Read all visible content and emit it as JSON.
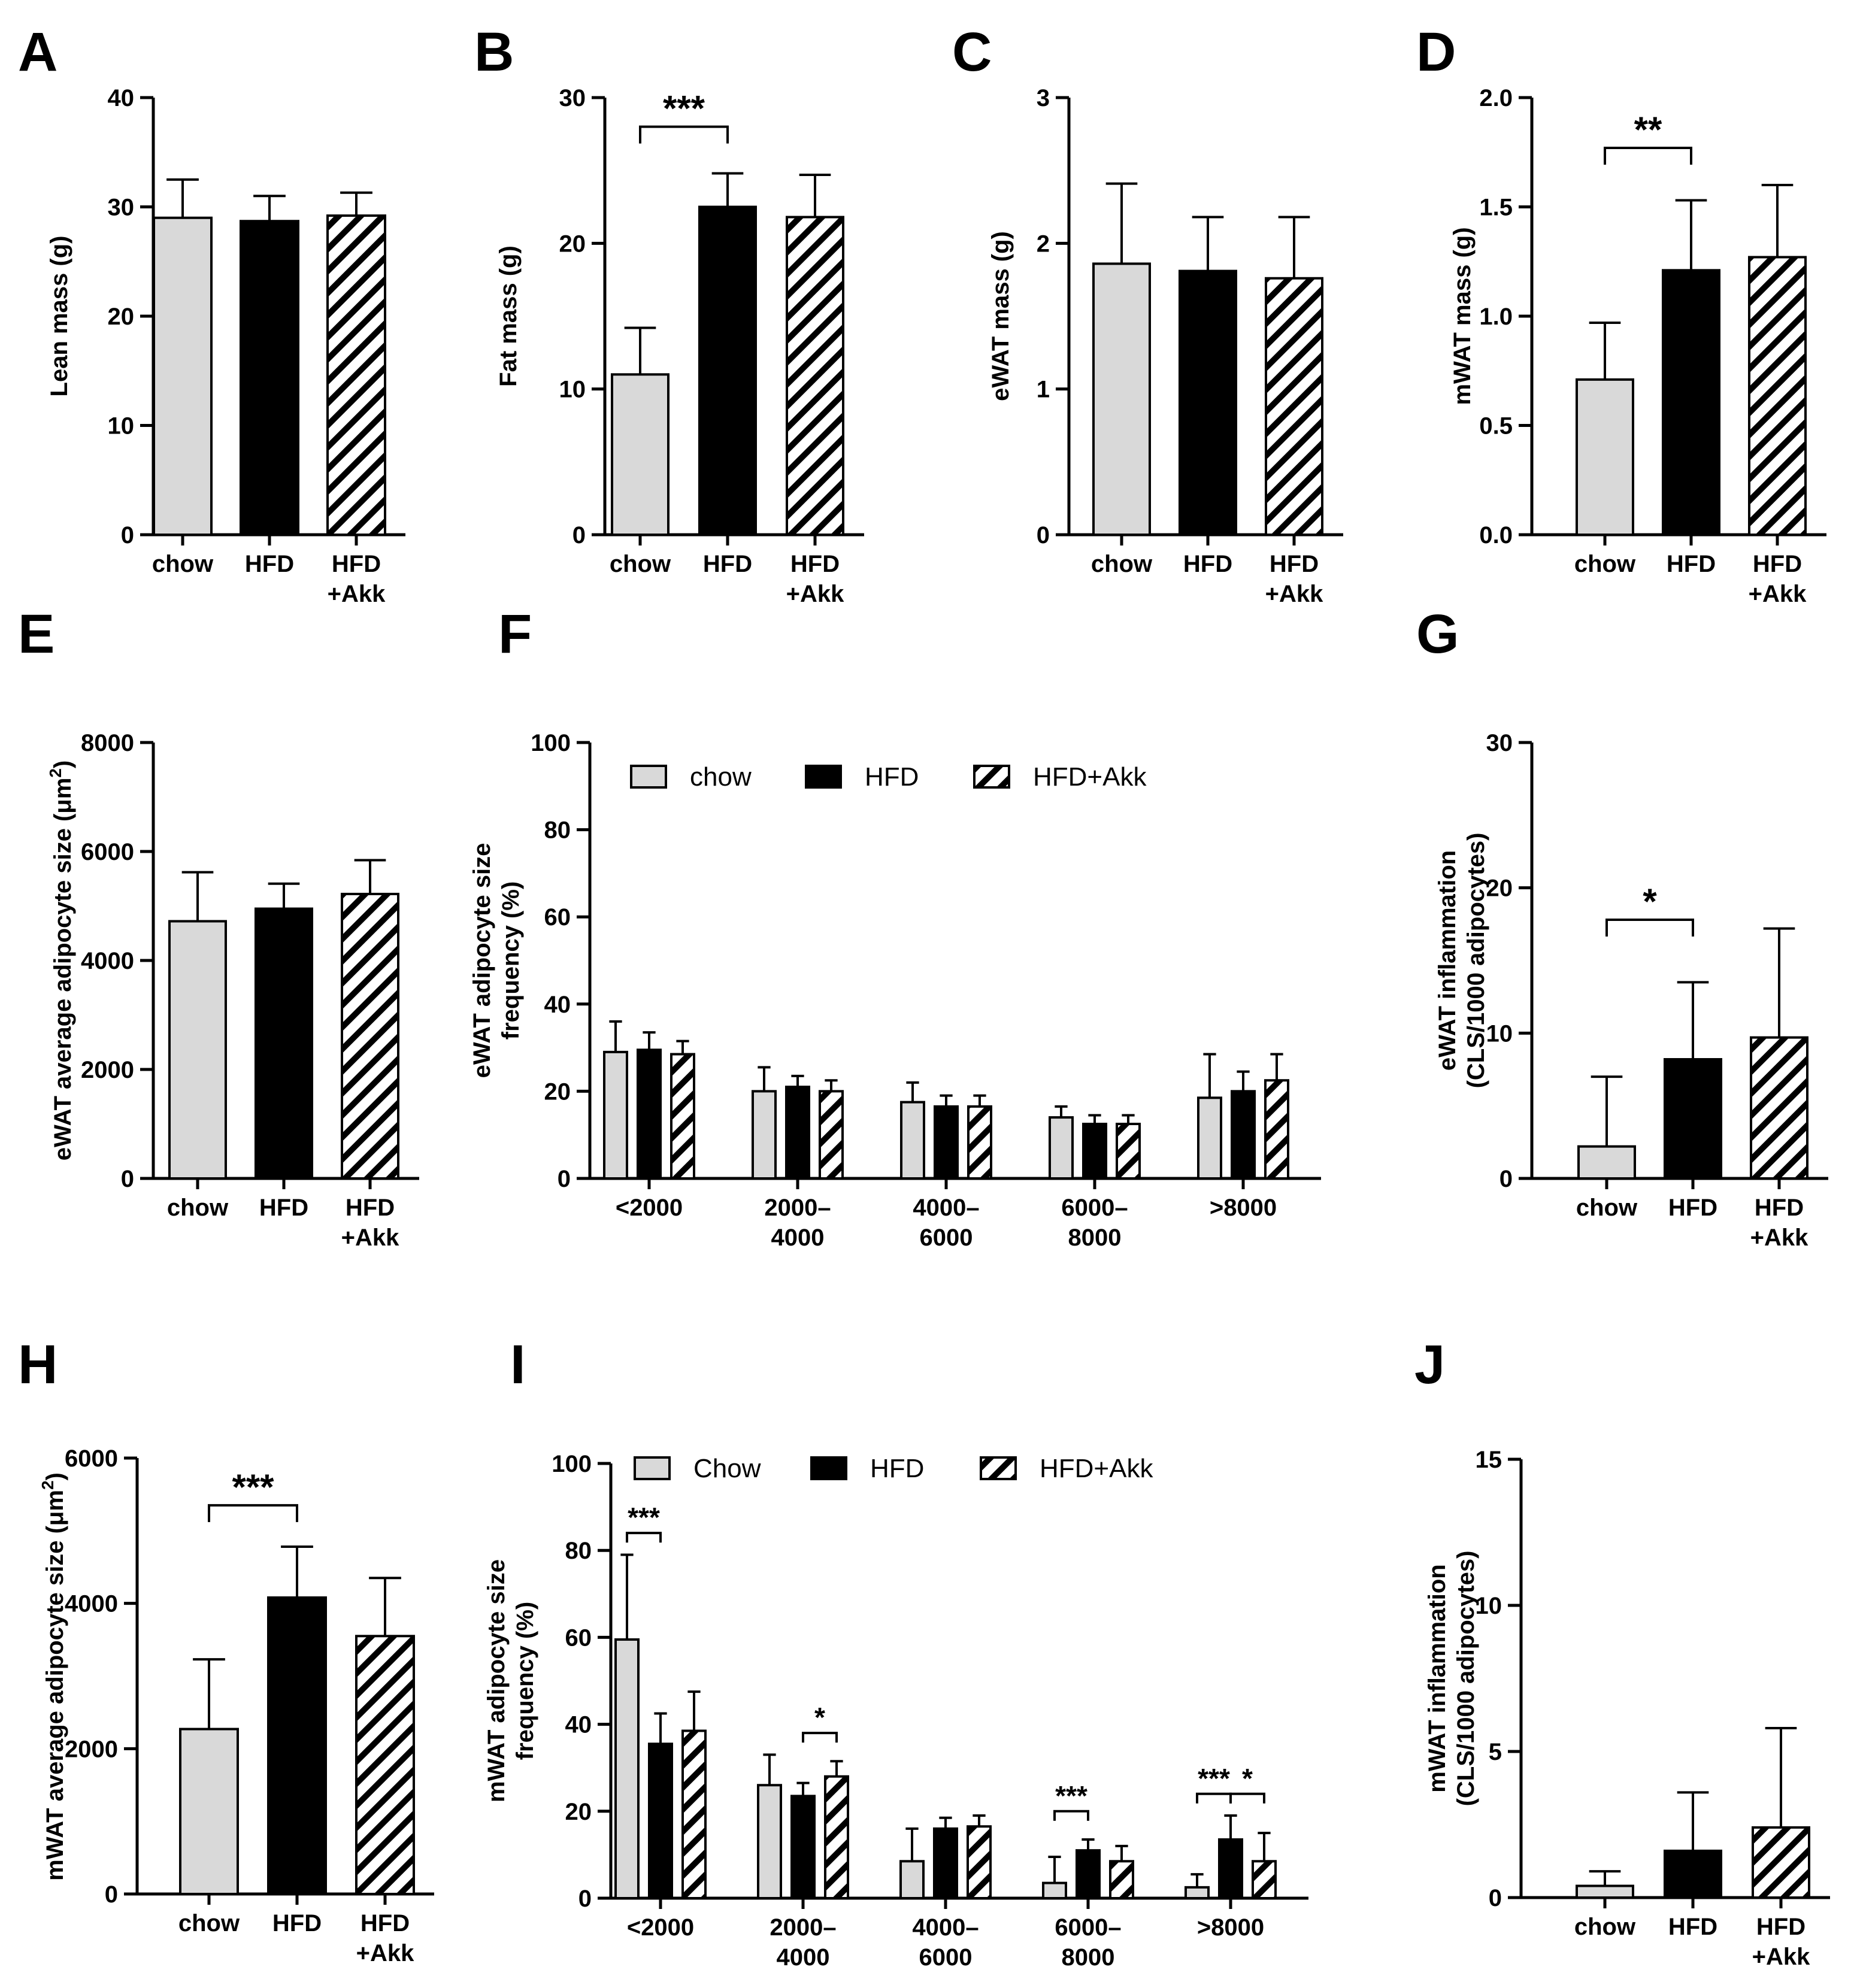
{
  "colors": {
    "chow": "#d9d9d9",
    "HFD": "#000000",
    "HFD+Akk": "hatch",
    "axis": "#000000"
  },
  "chart_data": [
    {
      "id": "A",
      "label": "A",
      "type": "bar",
      "ylabel": "Lean mass (g)",
      "ylim": [
        0,
        40
      ],
      "yticks": [
        0,
        10,
        20,
        30,
        40
      ],
      "ytick_labels": [
        "0",
        "10",
        "20",
        "30",
        "40"
      ],
      "categories": [
        [
          "chow"
        ],
        [
          "HFD"
        ],
        [
          "HFD",
          "+Akk"
        ]
      ],
      "values": [
        29.0,
        28.7,
        29.2
      ],
      "errors": [
        3.5,
        2.3,
        2.1
      ],
      "significance": []
    },
    {
      "id": "B",
      "label": "B",
      "type": "bar",
      "ylabel": "Fat mass (g)",
      "ylim": [
        0,
        30
      ],
      "yticks": [
        0,
        10,
        20,
        30
      ],
      "ytick_labels": [
        "0",
        "10",
        "20",
        "30"
      ],
      "categories": [
        [
          "chow"
        ],
        [
          "HFD"
        ],
        [
          "HFD",
          "+Akk"
        ]
      ],
      "values": [
        11.0,
        22.5,
        21.8
      ],
      "errors": [
        3.2,
        2.3,
        2.9
      ],
      "significance": [
        {
          "from": 0,
          "to": 1,
          "label": "***",
          "y": 28.0
        }
      ]
    },
    {
      "id": "C",
      "label": "C",
      "type": "bar",
      "ylabel": "eWAT mass (g)",
      "ylim": [
        0,
        3
      ],
      "yticks": [
        0,
        1,
        2,
        3
      ],
      "ytick_labels": [
        "0",
        "1",
        "2",
        "3"
      ],
      "categories": [
        [
          "chow"
        ],
        [
          "HFD"
        ],
        [
          "HFD",
          "+Akk"
        ]
      ],
      "values": [
        1.86,
        1.81,
        1.76
      ],
      "errors": [
        0.55,
        0.37,
        0.42
      ],
      "significance": []
    },
    {
      "id": "D",
      "label": "D",
      "type": "bar",
      "ylabel": "mWAT mass (g)",
      "ylim": [
        0,
        2.0
      ],
      "yticks": [
        0,
        0.5,
        1.0,
        1.5,
        2.0
      ],
      "ytick_labels": [
        "0.0",
        "0.5",
        "1.0",
        "1.5",
        "2.0"
      ],
      "categories": [
        [
          "chow"
        ],
        [
          "HFD"
        ],
        [
          "HFD",
          "+Akk"
        ]
      ],
      "values": [
        0.71,
        1.21,
        1.27
      ],
      "errors": [
        0.26,
        0.32,
        0.33
      ],
      "significance": [
        {
          "from": 0,
          "to": 1,
          "label": "**",
          "y": 1.77
        }
      ]
    },
    {
      "id": "E",
      "label": "E",
      "type": "bar",
      "ylabel": [
        "eWAT average adipocyte size (μm",
        "2",
        ")"
      ],
      "ylim": [
        0,
        8000
      ],
      "yticks": [
        0,
        2000,
        4000,
        6000,
        8000
      ],
      "ytick_labels": [
        "0",
        "2000",
        "4000",
        "6000",
        "8000"
      ],
      "categories": [
        [
          "chow"
        ],
        [
          "HFD"
        ],
        [
          "HFD",
          "+Akk"
        ]
      ],
      "values": [
        4720,
        4950,
        5220
      ],
      "errors": [
        900,
        460,
        620
      ],
      "significance": []
    },
    {
      "id": "F",
      "label": "F",
      "type": "bar",
      "ylabel": [
        "eWAT adipocyte size",
        "frequency (%)"
      ],
      "ylim": [
        0,
        100
      ],
      "yticks": [
        0,
        20,
        40,
        60,
        80,
        100
      ],
      "ytick_labels": [
        "0",
        "20",
        "40",
        "60",
        "80",
        "100"
      ],
      "categories": [
        [
          "<2000"
        ],
        [
          "2000–",
          "4000"
        ],
        [
          "4000–",
          "6000"
        ],
        [
          "6000–",
          "8000"
        ],
        [
          ">8000"
        ]
      ],
      "legend": [
        "chow",
        "HFD",
        "HFD+Akk"
      ],
      "series": [
        {
          "name": "chow",
          "values": [
            29,
            20,
            17.5,
            14,
            18.5
          ],
          "errors": [
            7,
            5.5,
            4.5,
            2.5,
            10
          ]
        },
        {
          "name": "HFD",
          "values": [
            29.5,
            21,
            16.5,
            12.5,
            20
          ],
          "errors": [
            4,
            2.5,
            2.5,
            2,
            4.5
          ]
        },
        {
          "name": "HFD+Akk",
          "values": [
            28.5,
            20,
            16.5,
            12.5,
            22.5
          ],
          "errors": [
            3,
            2.5,
            2.5,
            2,
            6
          ]
        }
      ],
      "significance": []
    },
    {
      "id": "G",
      "label": "G",
      "type": "bar",
      "ylabel": [
        "eWAT inflammation",
        "(CLS/1000 adipocytes)"
      ],
      "ylim": [
        0,
        30
      ],
      "yticks": [
        0,
        10,
        20,
        30
      ],
      "ytick_labels": [
        "0",
        "10",
        "20",
        "30"
      ],
      "categories": [
        [
          "chow"
        ],
        [
          "HFD"
        ],
        [
          "HFD",
          "+Akk"
        ]
      ],
      "values": [
        2.2,
        8.2,
        9.7
      ],
      "errors": [
        4.8,
        5.3,
        7.5
      ],
      "significance": [
        {
          "from": 0,
          "to": 1,
          "label": "*",
          "y": 17.8
        }
      ]
    },
    {
      "id": "H",
      "label": "H",
      "type": "bar",
      "ylabel": [
        "mWAT average adipocyte size (μm",
        "2",
        ")"
      ],
      "ylim": [
        0,
        6000
      ],
      "yticks": [
        0,
        2000,
        4000,
        6000
      ],
      "ytick_labels": [
        "0",
        "2000",
        "4000",
        "6000"
      ],
      "categories": [
        [
          "chow"
        ],
        [
          "HFD"
        ],
        [
          "HFD",
          "+Akk"
        ]
      ],
      "values": [
        2270,
        4080,
        3550
      ],
      "errors": [
        960,
        700,
        800
      ],
      "significance": [
        {
          "from": 0,
          "to": 1,
          "label": "***",
          "y": 5350
        }
      ]
    },
    {
      "id": "I",
      "label": "I",
      "type": "bar",
      "ylabel": [
        "mWAT adipocyte size",
        "frequency (%)"
      ],
      "ylim": [
        0,
        100
      ],
      "yticks": [
        0,
        20,
        40,
        60,
        80,
        100
      ],
      "ytick_labels": [
        "0",
        "20",
        "40",
        "60",
        "80",
        "100"
      ],
      "categories": [
        [
          "<2000"
        ],
        [
          "2000–",
          "4000"
        ],
        [
          "4000–",
          "6000"
        ],
        [
          "6000–",
          "8000"
        ],
        [
          ">8000"
        ]
      ],
      "legend": [
        "Chow",
        "HFD",
        "HFD+Akk"
      ],
      "series": [
        {
          "name": "Chow",
          "values": [
            59.5,
            26,
            8.5,
            3.5,
            2.5
          ],
          "errors": [
            19.5,
            7,
            7.5,
            6,
            3
          ]
        },
        {
          "name": "HFD",
          "values": [
            35.5,
            23.5,
            16,
            11,
            13.5
          ],
          "errors": [
            7,
            3,
            2.5,
            2.5,
            5.5
          ]
        },
        {
          "name": "HFD+Akk",
          "values": [
            38.5,
            28,
            16.5,
            8.5,
            8.5
          ],
          "errors": [
            9,
            3.5,
            2.5,
            3.5,
            6.5
          ]
        }
      ],
      "significance": [
        {
          "group": 0,
          "from": 0,
          "to": 1,
          "label": "***",
          "y": 84
        },
        {
          "group": 1,
          "from": 1,
          "to": 2,
          "label": "*",
          "y": 38
        },
        {
          "group": 3,
          "from": 0,
          "to": 1,
          "label": "***",
          "y": 20
        },
        {
          "group": 4,
          "from": 0,
          "to": 1,
          "label": "***",
          "y": 24
        },
        {
          "group": 4,
          "from": 1,
          "to": 2,
          "label": "*",
          "y": 24
        }
      ]
    },
    {
      "id": "J",
      "label": "J",
      "type": "bar",
      "ylabel": [
        "mWAT inflammation",
        "(CLS/1000 adipocytes)"
      ],
      "ylim": [
        0,
        15
      ],
      "yticks": [
        0,
        5,
        10,
        15
      ],
      "ytick_labels": [
        "0",
        "5",
        "10",
        "15"
      ],
      "categories": [
        [
          "chow"
        ],
        [
          "HFD"
        ],
        [
          "HFD",
          "+Akk"
        ]
      ],
      "values": [
        0.4,
        1.6,
        2.4
      ],
      "errors": [
        0.5,
        2.0,
        3.4
      ],
      "significance": []
    }
  ]
}
